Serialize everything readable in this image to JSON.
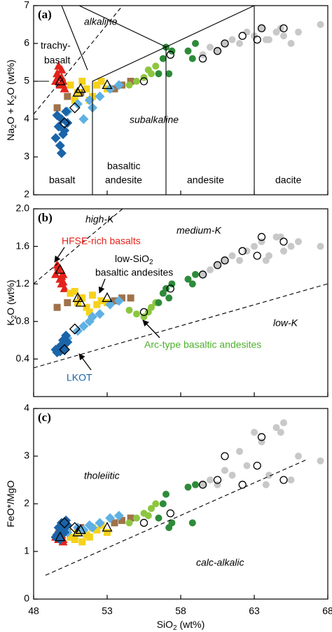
{
  "chart_data": [
    {
      "type": "scatter",
      "panel_label": "(a)",
      "ylabel": [
        "Na",
        "2",
        "O + K",
        "2",
        "O (wt%)"
      ],
      "xlim": [
        48,
        68
      ],
      "xticks": [
        48,
        53,
        58,
        63,
        68
      ],
      "ylim": [
        2,
        7
      ],
      "yticks": [
        2,
        3,
        4,
        5,
        6,
        7
      ],
      "annotations": [
        "alkaline",
        "trachy-",
        "basalt",
        "subalkaline",
        "basalt",
        "basaltic",
        "andesite",
        "andesite",
        "dacite"
      ],
      "series": [
        {
          "color": "#e2231a",
          "marker": "triangle",
          "x": [
            49.5,
            49.6,
            49.7,
            49.8,
            49.9,
            50.0,
            50.1,
            49.7,
            49.9,
            50.0
          ],
          "values": [
            5.0,
            5.2,
            5.1,
            4.9,
            5.3,
            5.0,
            4.8,
            5.4,
            5.1,
            4.9
          ]
        },
        {
          "color": "#a0724a",
          "marker": "square",
          "x": [
            49.6,
            50.3,
            51.2,
            53.5,
            54.0,
            54.6
          ],
          "values": [
            4.3,
            4.6,
            4.7,
            4.8,
            4.9,
            5.0
          ]
        },
        {
          "color": "#f5d21b",
          "marker": "square",
          "x": [
            50.5,
            51.0,
            51.3,
            51.6,
            52.0,
            52.3,
            52.6,
            53.0,
            51.8,
            50.8
          ],
          "values": [
            4.9,
            4.7,
            5.0,
            4.8,
            4.6,
            4.9,
            5.0,
            4.8,
            4.5,
            4.5
          ]
        },
        {
          "color": "#5fb0e3",
          "marker": "diamond",
          "x": [
            50.3,
            51.0,
            51.8,
            52.5,
            53.2,
            53.8,
            52.0,
            51.4
          ],
          "values": [
            4.2,
            4.4,
            4.5,
            4.6,
            4.8,
            4.9,
            4.3,
            4.0
          ]
        },
        {
          "color": "#1a64a8",
          "marker": "diamond",
          "x": [
            49.5,
            49.7,
            49.9,
            50.1,
            50.3,
            49.8,
            50.0,
            49.6,
            50.2,
            49.9
          ],
          "values": [
            3.5,
            3.8,
            4.0,
            3.7,
            3.9,
            3.3,
            3.6,
            4.1,
            4.2,
            3.1
          ]
        },
        {
          "color": "#8cc63f",
          "marker": "circle",
          "x": [
            54.5,
            55.0,
            55.5,
            56.0,
            56.3,
            55.8
          ],
          "values": [
            4.9,
            5.0,
            5.1,
            5.2,
            5.4,
            5.3
          ]
        },
        {
          "color": "#2e8b3a",
          "marker": "circle",
          "x": [
            56.5,
            56.8,
            57.0,
            57.2,
            57.4,
            58.5,
            59.0,
            58.8
          ],
          "values": [
            5.2,
            5.6,
            5.9,
            5.2,
            5.8,
            5.8,
            6.0,
            5.6
          ]
        },
        {
          "color": "#c8c8c8",
          "marker": "circle",
          "x": [
            59.5,
            60.0,
            60.5,
            61.0,
            61.5,
            62.0,
            62.5,
            63.0,
            63.5,
            64.0,
            64.5,
            65.0,
            65.5,
            66.0,
            63.8,
            64.8,
            67.5
          ],
          "values": [
            5.7,
            5.9,
            5.8,
            6.0,
            6.1,
            6.0,
            6.3,
            6.2,
            6.4,
            6.1,
            6.3,
            6.2,
            6.0,
            6.3,
            6.1,
            6.4,
            6.5
          ]
        },
        {
          "color": "#000000",
          "marker": "open-circle",
          "x": [
            55.5,
            57.3,
            59.5,
            60.5,
            61.0,
            62.2,
            63.5,
            63.2,
            65.0
          ],
          "values": [
            5.0,
            5.7,
            5.6,
            5.8,
            6.0,
            6.2,
            6.4,
            6.1,
            6.4
          ]
        },
        {
          "color": "#000000",
          "marker": "open-triangle",
          "x": [
            49.8,
            51.0,
            51.2,
            53.0
          ],
          "values": [
            5.0,
            4.7,
            4.8,
            4.9
          ]
        },
        {
          "color": "#000000",
          "marker": "open-diamond",
          "x": [
            50.1,
            50.8
          ],
          "values": [
            3.9,
            4.3
          ]
        }
      ]
    },
    {
      "type": "scatter",
      "panel_label": "(b)",
      "ylabel": [
        "K",
        "2",
        "O (wt%)"
      ],
      "xlim": [
        48,
        68
      ],
      "xticks": [
        48,
        53,
        58,
        63,
        68
      ],
      "ylim": [
        0,
        2
      ],
      "yticks": [
        0.4,
        0.8,
        1.2,
        1.6,
        {
          "value": 2,
          "label": "2.0"
        }
      ],
      "annotations": [
        "high-K",
        "medium-K",
        "low-K",
        "HFSE-rich basalts",
        "low-SiO",
        "2",
        "basaltic andesites",
        "Arc-type basaltic andesites",
        "LKOT"
      ],
      "series": [
        {
          "color": "#e2231a",
          "marker": "triangle",
          "x": [
            49.5,
            49.6,
            49.7,
            49.8,
            49.9,
            50.0,
            50.1,
            49.7,
            49.9,
            50.0
          ],
          "values": [
            1.3,
            1.4,
            1.35,
            1.25,
            1.2,
            1.3,
            1.15,
            1.38,
            1.28,
            1.22
          ]
        },
        {
          "color": "#a0724a",
          "marker": "square",
          "x": [
            49.6,
            50.3,
            51.2,
            53.5,
            54.0,
            54.6
          ],
          "values": [
            0.95,
            1.0,
            1.05,
            1.02,
            1.05,
            1.05
          ]
        },
        {
          "color": "#f5d21b",
          "marker": "square",
          "x": [
            50.5,
            51.0,
            51.3,
            51.6,
            52.0,
            52.3,
            52.6,
            53.0,
            51.8,
            50.8
          ],
          "values": [
            1.1,
            1.0,
            1.05,
            0.95,
            1.08,
            0.98,
            1.02,
            1.0,
            0.9,
            1.12
          ]
        },
        {
          "color": "#5fb0e3",
          "marker": "diamond",
          "x": [
            50.3,
            51.0,
            51.8,
            52.5,
            53.2,
            53.8,
            52.0,
            51.4
          ],
          "values": [
            0.62,
            0.7,
            0.8,
            0.88,
            0.98,
            1.02,
            0.85,
            0.75
          ]
        },
        {
          "color": "#1a64a8",
          "marker": "diamond",
          "x": [
            49.5,
            49.7,
            49.9,
            50.1,
            50.3,
            49.8,
            50.0,
            49.6,
            50.2,
            49.9
          ],
          "values": [
            0.5,
            0.52,
            0.55,
            0.5,
            0.58,
            0.48,
            0.6,
            0.47,
            0.65,
            0.52
          ]
        },
        {
          "color": "#8cc63f",
          "marker": "circle",
          "x": [
            54.5,
            55.0,
            55.5,
            56.0,
            56.3,
            55.8
          ],
          "values": [
            0.92,
            0.88,
            0.85,
            0.95,
            1.0,
            0.9
          ]
        },
        {
          "color": "#2e8b3a",
          "marker": "circle",
          "x": [
            56.5,
            56.8,
            57.0,
            57.2,
            57.4,
            58.5,
            59.0,
            58.8
          ],
          "values": [
            1.0,
            1.1,
            1.15,
            1.05,
            1.2,
            1.25,
            1.3,
            1.2
          ]
        },
        {
          "color": "#c8c8c8",
          "marker": "circle",
          "x": [
            59.5,
            60.0,
            60.5,
            61.0,
            61.5,
            62.0,
            62.5,
            63.0,
            63.5,
            64.0,
            64.5,
            65.0,
            65.5,
            66.0,
            63.8,
            64.8,
            67.5
          ],
          "values": [
            1.3,
            1.35,
            1.4,
            1.45,
            1.5,
            1.45,
            1.55,
            1.6,
            1.65,
            1.5,
            1.7,
            1.55,
            1.6,
            1.65,
            1.45,
            1.7,
            1.6
          ]
        },
        {
          "color": "#000000",
          "marker": "open-circle",
          "x": [
            55.5,
            57.3,
            59.5,
            60.5,
            61.0,
            62.2,
            63.5,
            63.2,
            65.0
          ],
          "values": [
            0.9,
            1.15,
            1.3,
            1.4,
            1.45,
            1.55,
            1.7,
            1.5,
            1.65
          ]
        },
        {
          "color": "#000000",
          "marker": "open-triangle",
          "x": [
            49.8,
            51.0,
            51.2,
            53.0
          ],
          "values": [
            1.35,
            1.05,
            1.0,
            1.05
          ]
        },
        {
          "color": "#000000",
          "marker": "open-diamond",
          "x": [
            50.1,
            50.8
          ],
          "values": [
            0.5,
            0.72
          ]
        }
      ]
    },
    {
      "type": "scatter",
      "panel_label": "(c)",
      "ylabel": [
        "FeO*/MgO"
      ],
      "xlabel": [
        "SiO",
        "2",
        " (wt%)"
      ],
      "xlim": [
        48,
        68
      ],
      "xticks": [
        48,
        53,
        58,
        63,
        68
      ],
      "ylim": [
        0,
        4
      ],
      "yticks": [
        0,
        1,
        2,
        3,
        4
      ],
      "annotations": [
        "tholeiitic",
        "calc-alkalic"
      ],
      "series": [
        {
          "color": "#e2231a",
          "marker": "triangle",
          "x": [
            49.5,
            49.6,
            49.7,
            49.8,
            49.9,
            50.0,
            50.1,
            49.7,
            49.9,
            50.0
          ],
          "values": [
            1.3,
            1.4,
            1.25,
            1.5,
            1.35,
            1.2,
            1.45,
            1.3,
            1.5,
            1.25
          ]
        },
        {
          "color": "#a0724a",
          "marker": "square",
          "x": [
            49.6,
            50.3,
            51.2,
            53.5,
            54.0,
            54.6
          ],
          "values": [
            1.3,
            1.4,
            1.5,
            1.6,
            1.65,
            1.7
          ]
        },
        {
          "color": "#f5d21b",
          "marker": "square",
          "x": [
            50.5,
            51.0,
            51.3,
            51.6,
            52.0,
            52.3,
            52.6,
            53.0,
            51.8,
            50.8
          ],
          "values": [
            1.3,
            1.4,
            1.2,
            1.35,
            1.5,
            1.45,
            1.55,
            1.4,
            1.3,
            1.25
          ]
        },
        {
          "color": "#5fb0e3",
          "marker": "diamond",
          "x": [
            50.3,
            51.0,
            51.8,
            52.5,
            53.2,
            53.8,
            52.0,
            51.4
          ],
          "values": [
            1.4,
            1.5,
            1.55,
            1.6,
            1.7,
            1.75,
            1.5,
            1.45
          ]
        },
        {
          "color": "#1a64a8",
          "marker": "diamond",
          "x": [
            49.5,
            49.7,
            49.9,
            50.1,
            50.3,
            49.8,
            50.0,
            49.6,
            50.2,
            49.9
          ],
          "values": [
            1.3,
            1.5,
            1.6,
            1.4,
            1.55,
            1.25,
            1.45,
            1.35,
            1.65,
            1.5
          ]
        },
        {
          "color": "#8cc63f",
          "marker": "circle",
          "x": [
            54.5,
            55.0,
            55.5,
            56.0,
            56.3,
            55.8
          ],
          "values": [
            1.6,
            1.7,
            1.8,
            1.9,
            2.0,
            1.75
          ]
        },
        {
          "color": "#2e8b3a",
          "marker": "circle",
          "x": [
            56.5,
            56.8,
            57.0,
            57.2,
            57.4,
            58.5,
            59.0,
            58.8
          ],
          "values": [
            1.7,
            2.0,
            2.2,
            1.5,
            1.6,
            2.35,
            2.4,
            1.6
          ]
        },
        {
          "color": "#c8c8c8",
          "marker": "circle",
          "x": [
            59.5,
            60.0,
            60.5,
            61.0,
            61.5,
            62.0,
            62.5,
            63.0,
            63.5,
            64.0,
            64.5,
            65.0,
            65.5,
            66.0,
            63.8,
            64.8,
            67.5
          ],
          "values": [
            2.4,
            2.5,
            2.4,
            2.7,
            2.6,
            3.1,
            2.8,
            3.5,
            3.3,
            2.6,
            3.6,
            3.7,
            2.5,
            3.0,
            2.4,
            3.5,
            2.9
          ]
        },
        {
          "color": "#000000",
          "marker": "open-circle",
          "x": [
            55.5,
            57.3,
            59.5,
            60.5,
            61.0,
            62.2,
            63.5,
            63.2,
            65.0
          ],
          "values": [
            1.6,
            1.8,
            2.4,
            2.5,
            3.0,
            2.4,
            3.4,
            2.8,
            2.5
          ]
        },
        {
          "color": "#000000",
          "marker": "open-triangle",
          "x": [
            49.8,
            51.0,
            51.2,
            53.0
          ],
          "values": [
            1.3,
            1.4,
            1.45,
            1.5
          ]
        },
        {
          "color": "#000000",
          "marker": "open-diamond",
          "x": [
            50.1,
            50.8
          ],
          "values": [
            1.6,
            1.5
          ]
        }
      ]
    }
  ]
}
